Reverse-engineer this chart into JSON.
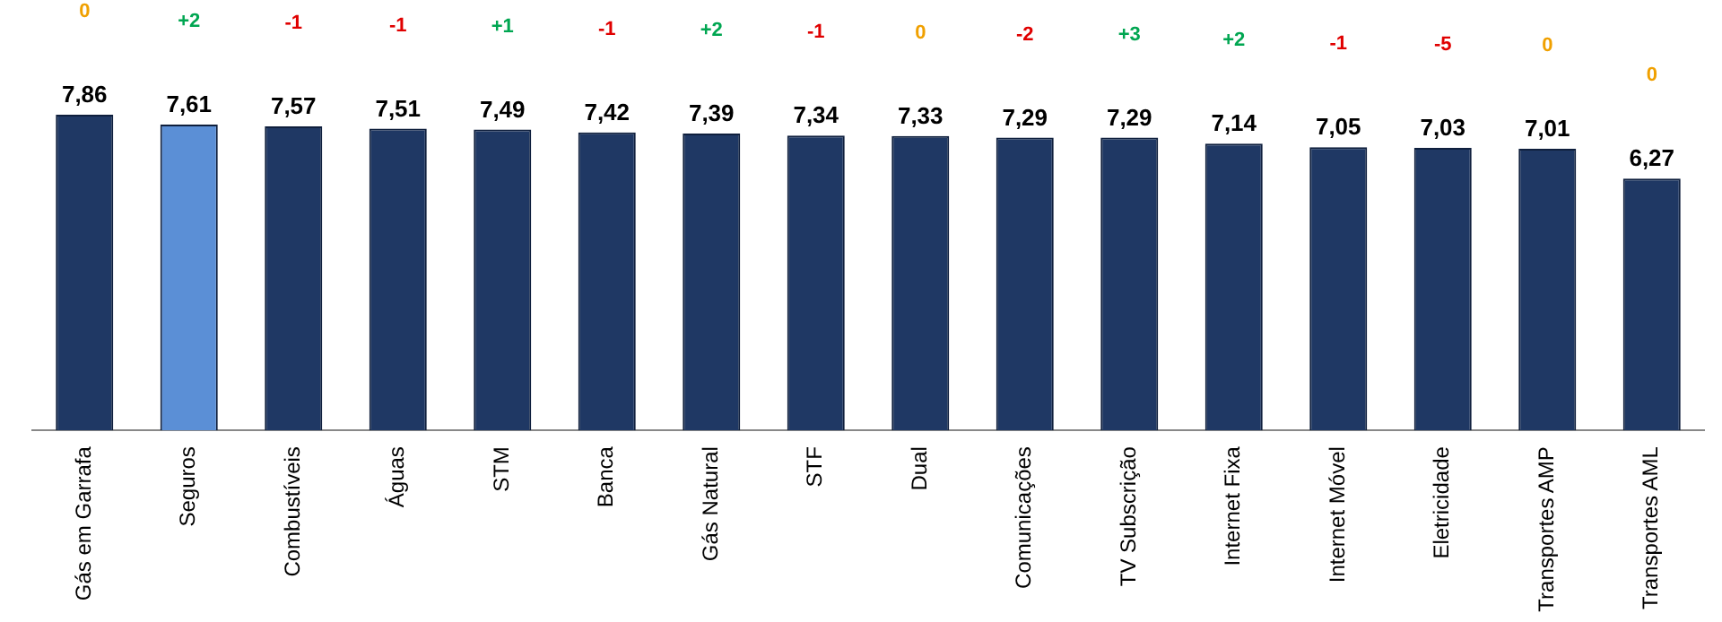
{
  "chart_data": {
    "type": "bar",
    "categories": [
      "Gás em Garrafa",
      "Seguros",
      "Combustíveis",
      "Águas",
      "STM",
      "Banca",
      "Gás Natural",
      "STF",
      "Dual",
      "Comunicações",
      "TV Subscrição",
      "Internet Fixa",
      "Internet Móvel",
      "Eletricidade",
      "Transportes AMP",
      "Transportes AML"
    ],
    "values": [
      7.86,
      7.61,
      7.57,
      7.51,
      7.49,
      7.42,
      7.39,
      7.34,
      7.33,
      7.29,
      7.29,
      7.14,
      7.05,
      7.03,
      7.01,
      6.27
    ],
    "colors": [
      "#1f3864",
      "#5b8fd6",
      "#1f3864",
      "#1f3864",
      "#1f3864",
      "#1f3864",
      "#1f3864",
      "#1f3864",
      "#1f3864",
      "#1f3864",
      "#1f3864",
      "#1f3864",
      "#1f3864",
      "#1f3864",
      "#1f3864",
      "#1f3864"
    ],
    "value_labels": [
      "7,86",
      "7,61",
      "7,57",
      "7,51",
      "7,49",
      "7,42",
      "7,39",
      "7,34",
      "7,33",
      "7,29",
      "7,29",
      "7,14",
      "7,05",
      "7,03",
      "7,01",
      "6,27"
    ],
    "tick_labels": "x",
    "grid": false,
    "legend": false,
    "annotations": [
      "0",
      "+2",
      "-1",
      "-1",
      "+1",
      "-1",
      "+2",
      "-1",
      "0",
      "-2",
      "+3",
      "+2",
      "-1",
      "-5",
      "0",
      "0"
    ]
  }
}
